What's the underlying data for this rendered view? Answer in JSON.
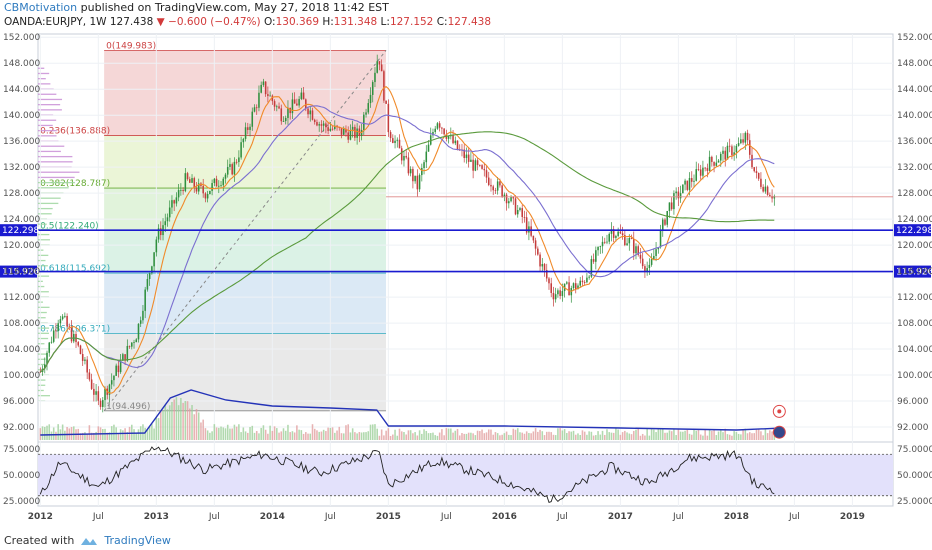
{
  "header": {
    "author": "CBMotivation",
    "published_text": "published on TradingView.com, May 27, 2018 11:42 EST",
    "symbol": "OANDA:EURJPY, 1W",
    "last": "127.438",
    "change": "−0.600 (−0.47%)",
    "o_label": "O:",
    "o_value": "130.369",
    "h_label": "H:",
    "h_value": "131.348",
    "l_label": "L:",
    "l_value": "127.152",
    "c_label": "C:",
    "c_value": "127.438"
  },
  "footer": {
    "created_with": "Created with",
    "brand": "TradingView"
  },
  "colors": {
    "up": "#2f8f3e",
    "down": "#c43b3b",
    "ma_fast": "#f08a2a",
    "ma_mid": "#7b6fd0",
    "ma_slow": "#5a9a3c",
    "hline": "#1a1ad0",
    "volume_ma": "#2433b8",
    "rsi": "#222222"
  },
  "chart_data": [
    {
      "type": "candlestick",
      "name": "price",
      "y_range": [
        90.0,
        152.5
      ],
      "y_ticks": [
        "152.000",
        "148.000",
        "144.000",
        "140.000",
        "136.000",
        "132.000",
        "128.000",
        "124.000",
        "120.000",
        "116.000",
        "112.000",
        "108.000",
        "104.000",
        "100.000",
        "96.000",
        "92.000"
      ],
      "x_ticks": [
        "2012",
        "Jul",
        "2013",
        "Jul",
        "2014",
        "Jul",
        "2015",
        "Jul",
        "2016",
        "Jul",
        "2017",
        "Jul",
        "2018",
        "Jul",
        "2019"
      ],
      "horizontal_levels": [
        "122.298",
        "115.926"
      ],
      "fibonacci": {
        "start": 94.496,
        "end": 149.983,
        "levels": [
          {
            "label": "0(149.983)",
            "value": 149.983
          },
          {
            "label": "0.236(136.888)",
            "value": 136.888
          },
          {
            "label": "0.382(128.787)",
            "value": 128.787
          },
          {
            "label": "0.5(122.240)",
            "value": 122.24
          },
          {
            "label": "0.618(115.692)",
            "value": 115.692
          },
          {
            "label": "0.786(106.371)",
            "value": 106.371
          },
          {
            "label": "1(94.496)",
            "value": 94.496
          }
        ]
      },
      "key_points": [
        {
          "date": "2012-01",
          "close": 100.5
        },
        {
          "date": "2012-03",
          "close": 109.5
        },
        {
          "date": "2012-05",
          "close": 104.0
        },
        {
          "date": "2012-07",
          "close": 95.5
        },
        {
          "date": "2012-09",
          "close": 101.0
        },
        {
          "date": "2012-11",
          "close": 106.5
        },
        {
          "date": "2013-01",
          "close": 121.0
        },
        {
          "date": "2013-02",
          "close": 124.0
        },
        {
          "date": "2013-04",
          "close": 130.0
        },
        {
          "date": "2013-06",
          "close": 128.0
        },
        {
          "date": "2013-09",
          "close": 132.0
        },
        {
          "date": "2013-12",
          "close": 144.5
        },
        {
          "date": "2014-02",
          "close": 140.0
        },
        {
          "date": "2014-04",
          "close": 142.5
        },
        {
          "date": "2014-06",
          "close": 138.5
        },
        {
          "date": "2014-08",
          "close": 137.5
        },
        {
          "date": "2014-10",
          "close": 137.0
        },
        {
          "date": "2014-12",
          "close": 149.5
        },
        {
          "date": "2015-01",
          "close": 138.0
        },
        {
          "date": "2015-04",
          "close": 129.0
        },
        {
          "date": "2015-06",
          "close": 139.5
        },
        {
          "date": "2015-08",
          "close": 135.0
        },
        {
          "date": "2015-10",
          "close": 132.0
        },
        {
          "date": "2016-01",
          "close": 128.0
        },
        {
          "date": "2016-03",
          "close": 124.0
        },
        {
          "date": "2016-06",
          "close": 112.5
        },
        {
          "date": "2016-09",
          "close": 114.0
        },
        {
          "date": "2016-12",
          "close": 122.5
        },
        {
          "date": "2017-02",
          "close": 120.5
        },
        {
          "date": "2017-04",
          "close": 116.0
        },
        {
          "date": "2017-06",
          "close": 126.0
        },
        {
          "date": "2017-08",
          "close": 129.5
        },
        {
          "date": "2017-10",
          "close": 132.5
        },
        {
          "date": "2018-01",
          "close": 135.0
        },
        {
          "date": "2018-02",
          "close": 136.5
        },
        {
          "date": "2018-03",
          "close": 130.5
        },
        {
          "date": "2018-05",
          "close": 127.4
        }
      ]
    },
    {
      "type": "bar",
      "name": "volume",
      "note_scale": "relative"
    },
    {
      "type": "line",
      "name": "RSI",
      "y_range": [
        20,
        80
      ],
      "y_ticks": [
        "75.0000",
        "50.0000",
        "25.0000"
      ],
      "bands": [
        70,
        30
      ],
      "key_points": [
        {
          "date": "2012-01",
          "value": 30
        },
        {
          "date": "2012-03",
          "value": 62
        },
        {
          "date": "2012-07",
          "value": 38
        },
        {
          "date": "2013-01",
          "value": 78
        },
        {
          "date": "2013-06",
          "value": 55
        },
        {
          "date": "2013-12",
          "value": 70
        },
        {
          "date": "2014-06",
          "value": 52
        },
        {
          "date": "2014-12",
          "value": 72
        },
        {
          "date": "2015-01",
          "value": 40
        },
        {
          "date": "2015-06",
          "value": 64
        },
        {
          "date": "2016-01",
          "value": 44
        },
        {
          "date": "2016-06",
          "value": 26
        },
        {
          "date": "2016-12",
          "value": 58
        },
        {
          "date": "2017-04",
          "value": 42
        },
        {
          "date": "2017-08",
          "value": 66
        },
        {
          "date": "2018-01",
          "value": 70
        },
        {
          "date": "2018-03",
          "value": 40
        },
        {
          "date": "2018-05",
          "value": 36
        }
      ]
    }
  ]
}
